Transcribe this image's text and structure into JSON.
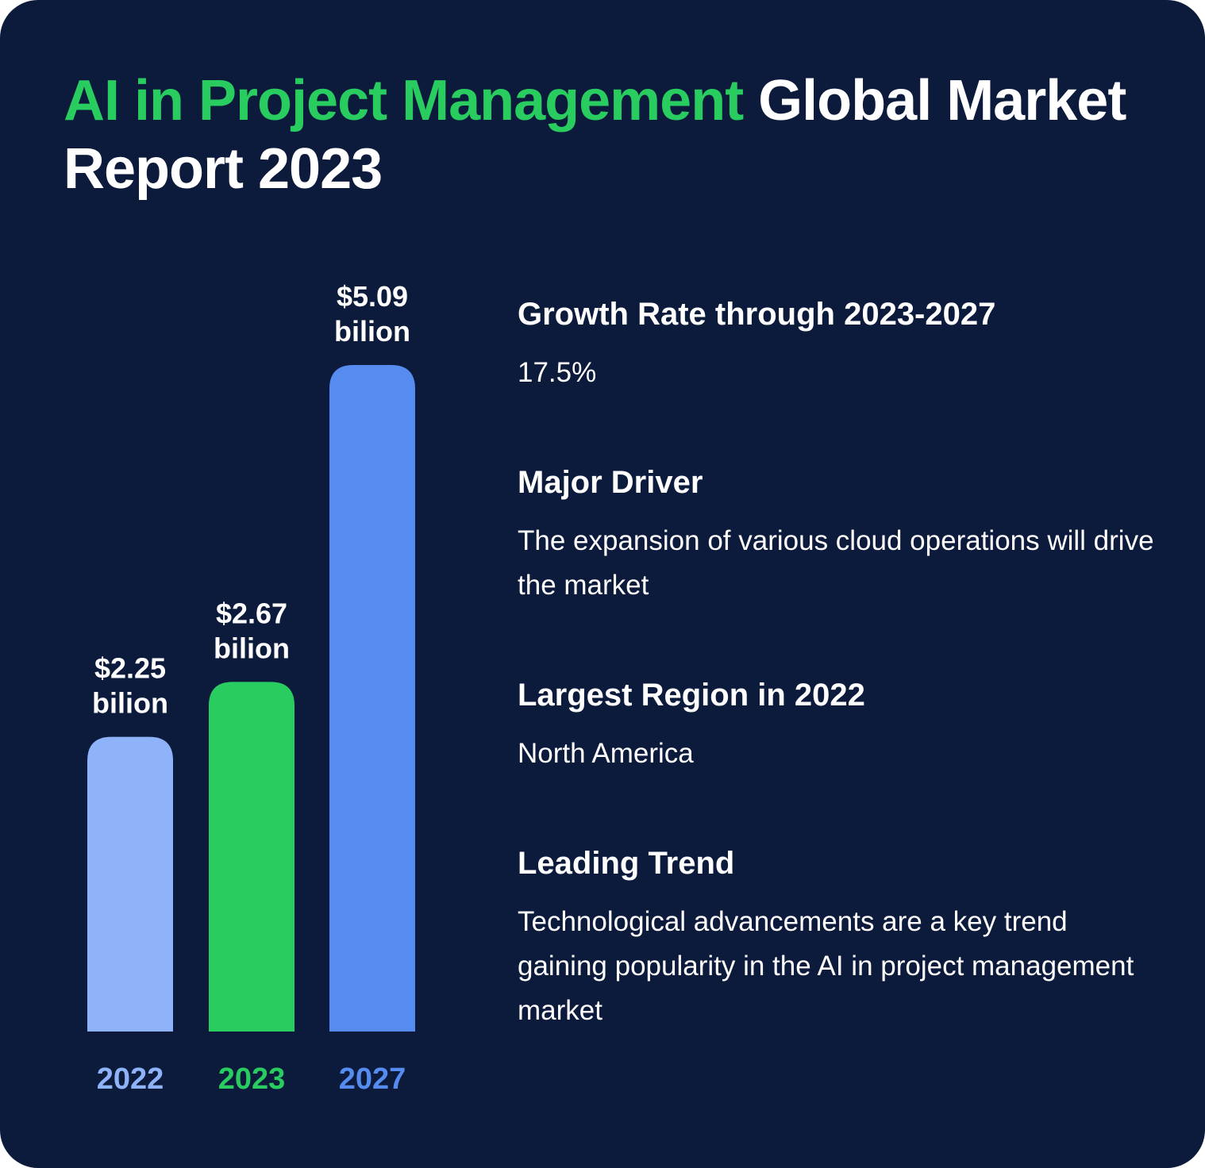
{
  "title": {
    "accent": "AI in Project Management",
    "rest": " Global Market Report 2023"
  },
  "colors": {
    "background": "#0c1a3c",
    "accent_green": "#29cc5f",
    "bar_2022": "#8fb3f8",
    "bar_2023": "#29cc5f",
    "bar_2027": "#568cef"
  },
  "chart_data": {
    "type": "bar",
    "title": "",
    "xlabel": "",
    "ylabel": "",
    "categories": [
      "2022",
      "2023",
      "2027"
    ],
    "values": [
      2.25,
      2.67,
      5.09
    ],
    "value_labels": [
      [
        "$2.25",
        "bilion"
      ],
      [
        "$2.67",
        "bilion"
      ],
      [
        "$5.09",
        "bilion"
      ]
    ],
    "unit": "billion USD",
    "bar_colors": [
      "#8fb3f8",
      "#29cc5f",
      "#568cef"
    ],
    "ylim": [
      0,
      5.09
    ],
    "grid": false,
    "legend": "none"
  },
  "facts": [
    {
      "heading": "Growth Rate through 2023-2027",
      "text": "17.5%"
    },
    {
      "heading": "Major Driver",
      "text": "The expansion of various cloud operations will drive the market"
    },
    {
      "heading": "Largest Region in 2022",
      "text": "North America"
    },
    {
      "heading": "Leading Trend",
      "text": "Technological advancements are a key trend gaining popularity in the AI in project management market"
    }
  ]
}
